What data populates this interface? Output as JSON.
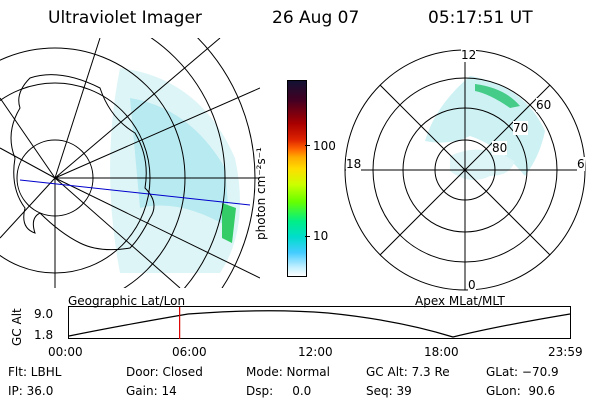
{
  "header": {
    "instrument": "Ultraviolet Imager",
    "date": "26 Aug 07",
    "time": "05:17:51 UT"
  },
  "colorbar": {
    "label": "photon cm⁻²s⁻¹",
    "ticks": [
      "100",
      "10"
    ],
    "colors": [
      "#111133",
      "#440022",
      "#aa0000",
      "#dd2200",
      "#ff6600",
      "#ffaa00",
      "#ffdd00",
      "#ccff00",
      "#66ff00",
      "#00ee88",
      "#00ddcc",
      "#44ccff",
      "#bbeeff",
      "#ffffff"
    ]
  },
  "geo_map": {
    "caption": "Geographic Lat/Lon"
  },
  "polar_map": {
    "caption": "Apex  MLat/MLT",
    "mlt_labels": {
      "top": "12",
      "left": "18",
      "right": "6",
      "bottom": "0"
    },
    "lat_labels": [
      "60",
      "70",
      "80"
    ]
  },
  "altitude_plot": {
    "axis_label": "GC Alt",
    "y_ticks": [
      "9.0",
      "1.8"
    ],
    "x_ticks": [
      "00:00",
      "06:00",
      "12:00",
      "18:00",
      "23:59"
    ],
    "current_time_hours": 5.3
  },
  "info_rows": [
    {
      "filter": "Flt: LBHL",
      "door": "Door: Closed",
      "mode": "Mode: Normal",
      "alt": "GC Alt: 7.3 Re",
      "glat": "GLat: −70.9"
    },
    {
      "ip": "IP: 36.0",
      "gain": "Gain: 14",
      "dsp": "Dsp:     0.0",
      "seq": "Seq: 39",
      "glon": "GLon:  90.6"
    }
  ]
}
